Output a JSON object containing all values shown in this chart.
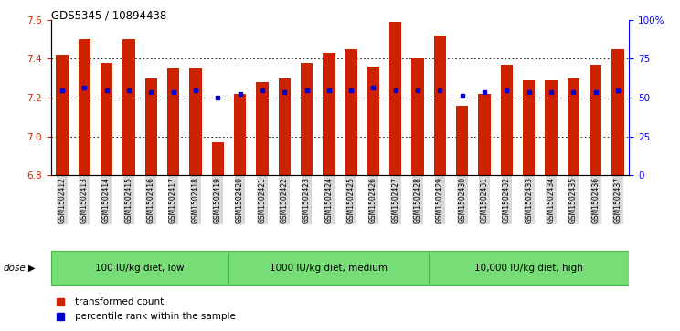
{
  "title": "GDS5345 / 10894438",
  "samples": [
    "GSM1502412",
    "GSM1502413",
    "GSM1502414",
    "GSM1502415",
    "GSM1502416",
    "GSM1502417",
    "GSM1502418",
    "GSM1502419",
    "GSM1502420",
    "GSM1502421",
    "GSM1502422",
    "GSM1502423",
    "GSM1502424",
    "GSM1502425",
    "GSM1502426",
    "GSM1502427",
    "GSM1502428",
    "GSM1502429",
    "GSM1502430",
    "GSM1502431",
    "GSM1502432",
    "GSM1502433",
    "GSM1502434",
    "GSM1502435",
    "GSM1502436",
    "GSM1502437"
  ],
  "bar_values": [
    7.42,
    7.5,
    7.38,
    7.5,
    7.3,
    7.35,
    7.35,
    6.97,
    7.22,
    7.28,
    7.3,
    7.38,
    7.43,
    7.45,
    7.36,
    7.59,
    7.4,
    7.52,
    7.16,
    7.22,
    7.37,
    7.29,
    7.29,
    7.3,
    7.37,
    7.45
  ],
  "dot_values": [
    7.24,
    7.25,
    7.24,
    7.24,
    7.23,
    7.23,
    7.24,
    7.2,
    7.22,
    7.24,
    7.23,
    7.24,
    7.24,
    7.24,
    7.25,
    7.24,
    7.24,
    7.24,
    7.21,
    7.23,
    7.24,
    7.23,
    7.23,
    7.23,
    7.23,
    7.24
  ],
  "groups": [
    {
      "label": "100 IU/kg diet, low",
      "start": 0,
      "end": 8
    },
    {
      "label": "1000 IU/kg diet, medium",
      "start": 8,
      "end": 17
    },
    {
      "label": "10,000 IU/kg diet, high",
      "start": 17,
      "end": 26
    }
  ],
  "ylim": [
    6.8,
    7.6
  ],
  "yticks": [
    6.8,
    7.0,
    7.2,
    7.4,
    7.6
  ],
  "right_yticks_pct": [
    0,
    25,
    50,
    75,
    100
  ],
  "right_ytick_labels": [
    "0",
    "25",
    "50",
    "75",
    "100%"
  ],
  "bar_color": "#cc2200",
  "dot_color": "#0000cc",
  "group_fill": "#77dd77",
  "group_edge": "#44bb44",
  "xtick_bg": "#d8d8d8",
  "legend_items": [
    {
      "color": "#cc2200",
      "label": "transformed count"
    },
    {
      "color": "#0000cc",
      "label": "percentile rank within the sample"
    }
  ]
}
